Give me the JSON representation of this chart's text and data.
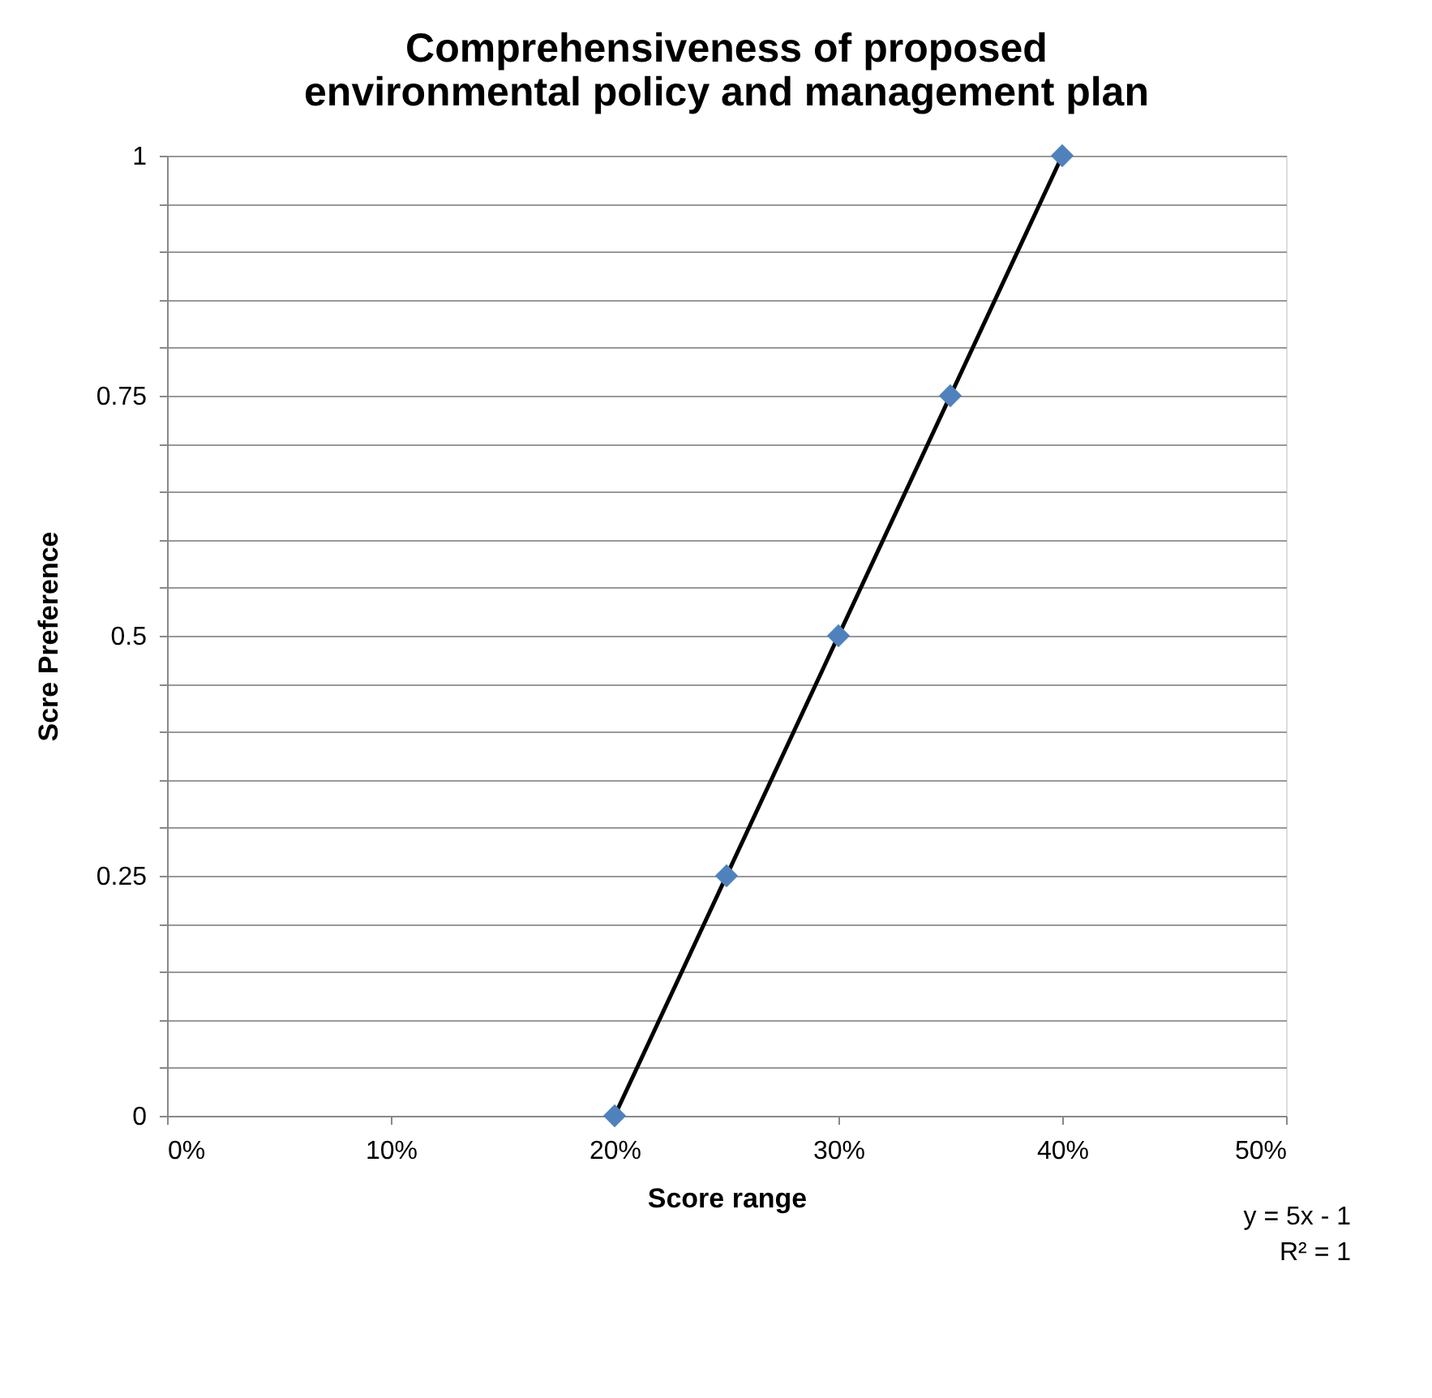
{
  "chart_data": {
    "type": "scatter",
    "title": "Comprehensiveness of proposed environmental policy and management plan",
    "xlabel": "Score range",
    "ylabel": "Scre Preference",
    "series": [
      {
        "type": "scatter",
        "color": "#4f81bd",
        "marker": "diamond",
        "x": [
          20,
          25,
          30,
          35,
          40
        ],
        "values": [
          0,
          0.25,
          0.5,
          0.75,
          1
        ]
      },
      {
        "type": "line",
        "color": "#000000",
        "line_style": "solid",
        "x": [
          20,
          40
        ],
        "values": [
          0,
          1
        ]
      }
    ],
    "xlim": [
      0,
      50
    ],
    "xticks": [
      {
        "value": 0,
        "label": "0%"
      },
      {
        "value": 10,
        "label": "10%"
      },
      {
        "value": 20,
        "label": "20%"
      },
      {
        "value": 30,
        "label": "30%"
      },
      {
        "value": 40,
        "label": "40%"
      },
      {
        "value": 50,
        "label": "50%"
      }
    ],
    "ylim": [
      0,
      1
    ],
    "yticks": [
      0,
      {
        "value": 0.05,
        "label": null
      },
      {
        "value": 0.1,
        "label": null
      },
      {
        "value": 0.15,
        "label": null
      },
      {
        "value": 0.2,
        "label": null
      },
      0.25,
      {
        "value": 0.3,
        "label": null
      },
      {
        "value": 0.35,
        "label": null
      },
      {
        "value": 0.4,
        "label": null
      },
      {
        "value": 0.45,
        "label": null
      },
      0.5,
      {
        "value": 0.55,
        "label": null
      },
      {
        "value": 0.6,
        "label": null
      },
      {
        "value": 0.65,
        "label": null
      },
      {
        "value": 0.7,
        "label": null
      },
      0.75,
      {
        "value": 0.8,
        "label": null
      },
      {
        "value": 0.85,
        "label": null
      },
      {
        "value": 0.9,
        "label": null
      },
      {
        "value": 0.95,
        "label": null
      },
      1
    ],
    "grid": "y",
    "annotations": [
      "y = 5x - 1",
      "R² = 1"
    ]
  }
}
